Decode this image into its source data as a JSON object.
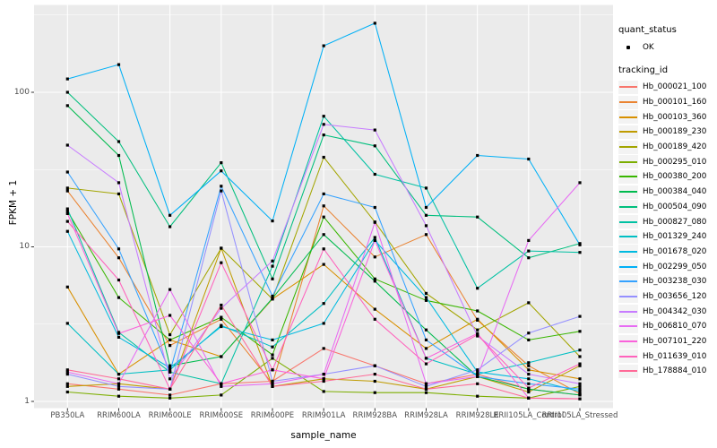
{
  "figure": {
    "y_axis_title": "FPKM + 1",
    "x_axis_title": "sample_name",
    "y_ticks": [
      {
        "label": "100",
        "value": 100
      },
      {
        "label": "10",
        "value": 10
      },
      {
        "label": "1",
        "value": 1
      }
    ],
    "legend": {
      "quant_status_title": "quant_status",
      "quant_status_items": [
        {
          "label": "OK"
        }
      ],
      "tracking_title": "tracking_id"
    }
  },
  "style": {
    "panel_bg": "#EBEBEB",
    "grid_color": "#FFFFFF",
    "tick_color": "#333333",
    "tick_label_color": "#4D4D4D",
    "point_color": "#000000",
    "legend_key_bg": "#F3F3F3"
  },
  "chart_data": {
    "type": "line",
    "title": "",
    "xlabel": "sample_name",
    "ylabel": "FPKM + 1",
    "y_scale": "log10",
    "ylim": [
      1,
      320
    ],
    "grid": true,
    "legend_position": "right",
    "marker": "black-square",
    "categories": [
      "PB350LA",
      "RRIM600LA",
      "RRIM600LE",
      "RRIM600SE",
      "RRIM600PE",
      "RRIM901LA",
      "RRIM928BA",
      "RRIM928LA",
      "RRIM928LE",
      "RRII105LA_Control",
      "RRII105LA_Stressed"
    ],
    "series": [
      {
        "name": "Hb_000021_100",
        "color": "#F8766D",
        "values": [
          1.3,
          1.2,
          1.1,
          1.3,
          1.35,
          2.2,
          1.7,
          1.3,
          1.5,
          1.2,
          1.1
        ]
      },
      {
        "name": "Hb_000101_160",
        "color": "#EA8331",
        "values": [
          23,
          8.5,
          2.3,
          3.4,
          1.3,
          18.4,
          8.6,
          12,
          3.35,
          1.7,
          1.12
        ]
      },
      {
        "name": "Hb_000103_360",
        "color": "#D89000",
        "values": [
          5.5,
          1.5,
          2.5,
          1.95,
          4.6,
          7.7,
          3.95,
          2.2,
          3.4,
          1.6,
          1.4
        ]
      },
      {
        "name": "Hb_000189_230",
        "color": "#C09B00",
        "values": [
          1.25,
          1.3,
          1.2,
          9.8,
          1.25,
          1.4,
          1.35,
          1.2,
          1.45,
          1.15,
          1.7
        ]
      },
      {
        "name": "Hb_000189_420",
        "color": "#A3A500",
        "values": [
          24,
          22,
          2.7,
          9.8,
          4.6,
          38,
          14.5,
          5,
          2.9,
          4.35,
          1.95
        ]
      },
      {
        "name": "Hb_000295_010",
        "color": "#7CAE00",
        "values": [
          1.15,
          1.08,
          1.05,
          1.1,
          1.9,
          1.16,
          1.14,
          1.14,
          1.08,
          1.05,
          1.25
        ]
      },
      {
        "name": "Hb_000380_200",
        "color": "#39B600",
        "values": [
          17,
          4.7,
          2.5,
          3.5,
          2,
          15.6,
          6.2,
          4.5,
          3.85,
          2.5,
          2.84
        ]
      },
      {
        "name": "Hb_000384_040",
        "color": "#00BB4E",
        "values": [
          82,
          39,
          1.7,
          1.95,
          4.65,
          12,
          6,
          2.9,
          1.45,
          1.2,
          1.1
        ]
      },
      {
        "name": "Hb_000504_090",
        "color": "#00BF7D",
        "values": [
          100,
          48,
          13.5,
          35,
          6.2,
          53,
          45,
          16,
          15.6,
          8.5,
          10.5
        ]
      },
      {
        "name": "Hb_000827_080",
        "color": "#00C1A3",
        "values": [
          17.6,
          2.8,
          1.55,
          1.3,
          7.5,
          70,
          29.5,
          24,
          5.4,
          9.4,
          9.2
        ]
      },
      {
        "name": "Hb_001329_240",
        "color": "#00BFC4",
        "values": [
          3.2,
          1.5,
          1.6,
          3.1,
          2.25,
          4.3,
          11.5,
          1.9,
          1.5,
          1.78,
          2.15
        ]
      },
      {
        "name": "Hb_001678_020",
        "color": "#00BAE0",
        "values": [
          12.6,
          2.6,
          1.65,
          3.05,
          2.5,
          3.2,
          11,
          4.7,
          1.55,
          1.4,
          1.16
        ]
      },
      {
        "name": "Hb_002299_050",
        "color": "#00B0F6",
        "values": [
          122,
          151,
          16,
          31,
          14.7,
          200,
          280,
          18,
          39,
          37,
          10.3
        ]
      },
      {
        "name": "Hb_003238_030",
        "color": "#35A2FF",
        "values": [
          30.5,
          9.7,
          1.55,
          24.7,
          4.8,
          22,
          18,
          2.5,
          1.45,
          1.3,
          1.2
        ]
      },
      {
        "name": "Hb_003656_120",
        "color": "#9590FF",
        "values": [
          1.5,
          1.25,
          1.2,
          23,
          1.35,
          1.5,
          1.7,
          1.25,
          1.6,
          2.77,
          3.55
        ]
      },
      {
        "name": "Hb_004342_030",
        "color": "#C77CFF",
        "values": [
          45.5,
          26,
          1.4,
          4,
          8.1,
          62,
          57,
          13.7,
          2.65,
          1.5,
          1.3
        ]
      },
      {
        "name": "Hb_006810_070",
        "color": "#E76BF3",
        "values": [
          1.55,
          1.3,
          5.3,
          1.25,
          1.3,
          1.5,
          14.4,
          1.3,
          1.45,
          11,
          26
        ]
      },
      {
        "name": "Hb_007101_220",
        "color": "#FA62DB",
        "values": [
          16.4,
          2.75,
          3.6,
          1.3,
          1.6,
          1.4,
          11,
          1.9,
          2.75,
          1.05,
          1.04
        ]
      },
      {
        "name": "Hb_011639_010",
        "color": "#FF62BC",
        "values": [
          14.6,
          6.1,
          1.2,
          7.9,
          1.6,
          9.7,
          3.4,
          1.75,
          2.7,
          1.22,
          1.75
        ]
      },
      {
        "name": "Hb_178884_010",
        "color": "#FF6A98",
        "values": [
          1.6,
          1.4,
          1.2,
          4.2,
          1.25,
          1.35,
          1.5,
          1.2,
          1.3,
          1.05,
          1.04
        ]
      }
    ]
  }
}
